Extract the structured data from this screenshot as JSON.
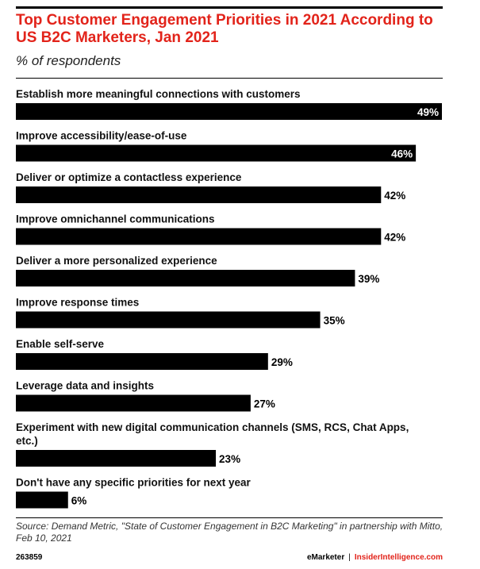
{
  "header": {
    "title": "Top Customer Engagement Priorities in 2021 According to US B2C Marketers, Jan 2021",
    "subtitle": "% of respondents"
  },
  "footer": {
    "source": "Source: Demand Metric, \"State of Customer Engagement in B2C Marketing\" in partnership with Mitto, Feb 10, 2021",
    "chart_id": "263859",
    "brand_left": "eMarketer",
    "brand_sep": "|",
    "brand_right": "InsiderIntelligence.com"
  },
  "colors": {
    "accent": "#e2231a",
    "bar": "#000000",
    "label_inside": "#ffffff",
    "label_outside": "#000000"
  },
  "chart_data": {
    "type": "bar",
    "orientation": "horizontal",
    "categories": [
      [
        "Establish more meaningful connections with customers"
      ],
      [
        "Improve accessibility/ease-of-use"
      ],
      [
        "Deliver or optimize a contactless experience"
      ],
      [
        "Improve omnichannel communications"
      ],
      [
        "Deliver a more personalized experience"
      ],
      [
        "Improve response times"
      ],
      [
        "Enable self-serve"
      ],
      [
        "Leverage data and insights"
      ],
      [
        "Experiment with new digital communication channels (SMS, RCS, Chat Apps,",
        "etc.)"
      ],
      [
        "Don't have any specific priorities for next year"
      ]
    ],
    "values": [
      49,
      46,
      42,
      42,
      39,
      35,
      29,
      27,
      23,
      6
    ],
    "value_labels": [
      "49%",
      "46%",
      "42%",
      "42%",
      "39%",
      "35%",
      "29%",
      "27%",
      "23%",
      "6%"
    ],
    "labels_inside": [
      true,
      true,
      false,
      false,
      false,
      false,
      false,
      false,
      false,
      false
    ],
    "grid": false,
    "legend": "none"
  }
}
